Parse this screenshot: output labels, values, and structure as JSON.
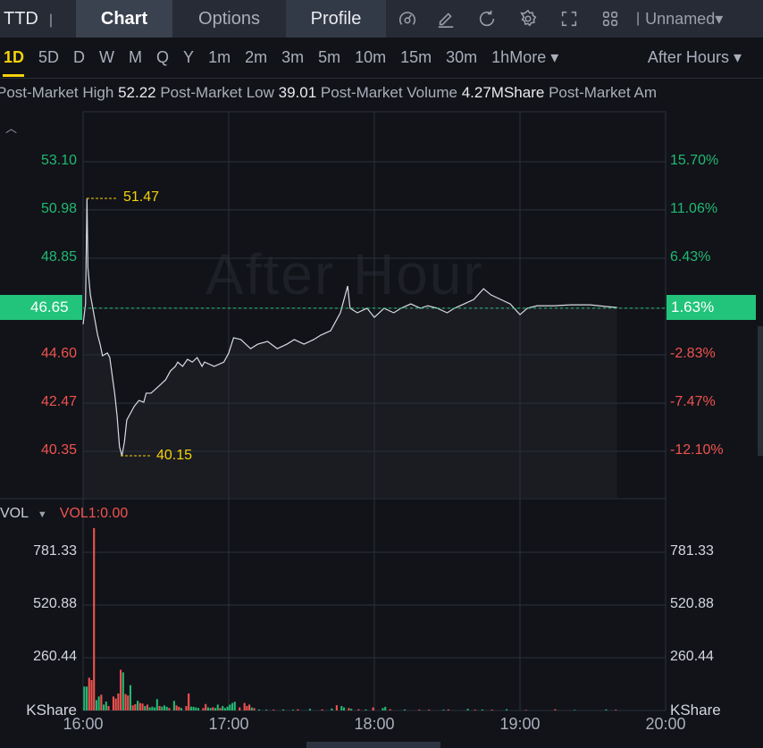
{
  "header": {
    "symbol": "TTD",
    "tabs": [
      "Chart",
      "Options",
      "Profile"
    ],
    "active_tab": "Chart",
    "icons": [
      "gauge-icon",
      "pencil-icon",
      "refresh-icon",
      "gear-icon",
      "expand-icon",
      "grid-icon"
    ],
    "layout_name": "Unnamed"
  },
  "periods": {
    "items": [
      "1D",
      "5D",
      "D",
      "W",
      "M",
      "Q",
      "Y",
      "1m",
      "2m",
      "3m",
      "5m",
      "10m",
      "15m",
      "30m",
      "1h"
    ],
    "active": "1D",
    "more_label": "More",
    "session": "After Hours"
  },
  "info": {
    "high_label": "Post-Market High",
    "high": "52.22",
    "low_label": "Post-Market Low",
    "low": "39.01",
    "volume_label": "Post-Market Volume",
    "volume": "4.27MShare",
    "amount_label": "Post-Market Am"
  },
  "watermark": "After Hour",
  "colors": {
    "up": "#22b873",
    "down": "#f0524f",
    "accent": "#f5d20a",
    "last_price_bg": "#21c47a"
  },
  "chart_data": [
    {
      "type": "line",
      "title": "",
      "y_left_ticks": [
        "53.10",
        "50.98",
        "48.85",
        "46.65",
        "44.60",
        "42.47",
        "40.35"
      ],
      "y_right_ticks": [
        "15.70%",
        "11.06%",
        "6.43%",
        "1.63%",
        "-2.83%",
        "-7.47%",
        "-12.10%"
      ],
      "ylim": [
        40.35,
        53.1
      ],
      "x_ticks": [
        "16:00",
        "17:00",
        "18:00",
        "19:00",
        "20:00"
      ],
      "last_price": "46.65",
      "last_pct": "1.63%",
      "max_label": "51.47",
      "min_label": "40.15",
      "points": [
        [
          "16:00",
          45.94
        ],
        [
          "16:01",
          46.84
        ],
        [
          "16:01",
          51.49
        ],
        [
          "16:02",
          48.42
        ],
        [
          "16:03",
          47.24
        ],
        [
          "16:04",
          46.65
        ],
        [
          "16:05",
          46.06
        ],
        [
          "16:06",
          45.47
        ],
        [
          "16:07",
          45.07
        ],
        [
          "16:08",
          44.56
        ],
        [
          "16:10",
          44.68
        ],
        [
          "16:11",
          44.48
        ],
        [
          "16:12",
          43.69
        ],
        [
          "16:13",
          42.91
        ],
        [
          "16:14",
          41.92
        ],
        [
          "16:15",
          40.55
        ],
        [
          "16:16",
          40.15
        ],
        [
          "16:17",
          40.74
        ],
        [
          "16:18",
          41.73
        ],
        [
          "16:20",
          42.12
        ],
        [
          "16:21",
          42.32
        ],
        [
          "16:23",
          42.59
        ],
        [
          "16:25",
          42.51
        ],
        [
          "16:26",
          42.91
        ],
        [
          "16:28",
          42.91
        ],
        [
          "16:30",
          43.1
        ],
        [
          "16:32",
          43.3
        ],
        [
          "16:34",
          43.5
        ],
        [
          "16:36",
          43.89
        ],
        [
          "16:38",
          44.09
        ],
        [
          "16:39",
          44.28
        ],
        [
          "16:41",
          44.09
        ],
        [
          "16:43",
          44.4
        ],
        [
          "16:45",
          44.28
        ],
        [
          "16:47",
          44.48
        ],
        [
          "16:49",
          44.09
        ],
        [
          "16:50",
          44.28
        ],
        [
          "16:54",
          44.09
        ],
        [
          "16:58",
          44.28
        ],
        [
          "17:00",
          44.68
        ],
        [
          "17:02",
          45.35
        ],
        [
          "17:05",
          45.27
        ],
        [
          "17:09",
          44.87
        ],
        [
          "17:12",
          45.07
        ],
        [
          "17:16",
          45.19
        ],
        [
          "17:20",
          44.87
        ],
        [
          "17:24",
          45.07
        ],
        [
          "17:27",
          45.27
        ],
        [
          "17:31",
          45.07
        ],
        [
          "17:35",
          45.27
        ],
        [
          "17:38",
          45.47
        ],
        [
          "17:42",
          45.66
        ],
        [
          "17:46",
          46.45
        ],
        [
          "17:47",
          46.84
        ],
        [
          "17:49",
          47.63
        ],
        [
          "17:50",
          46.65
        ],
        [
          "17:53",
          46.45
        ],
        [
          "17:57",
          46.65
        ],
        [
          "18:00",
          46.25
        ],
        [
          "18:04",
          46.65
        ],
        [
          "18:08",
          46.45
        ],
        [
          "18:11",
          46.65
        ],
        [
          "18:15",
          46.84
        ],
        [
          "18:19",
          46.65
        ],
        [
          "18:22",
          46.76
        ],
        [
          "18:26",
          46.65
        ],
        [
          "18:30",
          46.45
        ],
        [
          "18:33",
          46.65
        ],
        [
          "18:37",
          46.84
        ],
        [
          "18:41",
          47.04
        ],
        [
          "18:45",
          47.51
        ],
        [
          "18:48",
          47.24
        ],
        [
          "18:52",
          47.04
        ],
        [
          "18:56",
          46.84
        ],
        [
          "19:00",
          46.37
        ],
        [
          "19:03",
          46.65
        ],
        [
          "19:07",
          46.76
        ],
        [
          "19:14",
          46.76
        ],
        [
          "19:21",
          46.8
        ],
        [
          "19:29",
          46.8
        ],
        [
          "19:36",
          46.72
        ],
        [
          "19:40",
          46.68
        ]
      ]
    },
    {
      "type": "bar",
      "title": "",
      "indicator": "VOL",
      "indicator_value": "VOL1:0.00",
      "unit": "KShare",
      "y_ticks": [
        "781.33",
        "520.88",
        "260.44"
      ],
      "x_ticks": [
        "16:00",
        "17:00",
        "18:00",
        "19:00",
        "20:00"
      ],
      "bars_minute_value_dir": [
        [
          0,
          118,
          "up"
        ],
        [
          1,
          118,
          "up"
        ],
        [
          2,
          162,
          "down"
        ],
        [
          3,
          150,
          "down"
        ],
        [
          4,
          901,
          "down"
        ],
        [
          5,
          51,
          "up"
        ],
        [
          6,
          69,
          "up"
        ],
        [
          7,
          78,
          "down"
        ],
        [
          8,
          29,
          "up"
        ],
        [
          9,
          44,
          "up"
        ],
        [
          10,
          22,
          "down"
        ],
        [
          12,
          69,
          "down"
        ],
        [
          13,
          59,
          "down"
        ],
        [
          14,
          84,
          "down"
        ],
        [
          15,
          201,
          "down"
        ],
        [
          16,
          188,
          "up"
        ],
        [
          17,
          81,
          "down"
        ],
        [
          18,
          74,
          "down"
        ],
        [
          19,
          125,
          "up"
        ],
        [
          20,
          25,
          "down"
        ],
        [
          21,
          31,
          "down"
        ],
        [
          22,
          48,
          "up"
        ],
        [
          23,
          37,
          "down"
        ],
        [
          24,
          34,
          "down"
        ],
        [
          25,
          22,
          "up"
        ],
        [
          26,
          29,
          "down"
        ],
        [
          27,
          15,
          "up"
        ],
        [
          28,
          19,
          "up"
        ],
        [
          29,
          15,
          "up"
        ],
        [
          30,
          56,
          "up"
        ],
        [
          31,
          22,
          "down"
        ],
        [
          32,
          19,
          "up"
        ],
        [
          33,
          25,
          "up"
        ],
        [
          34,
          18,
          "up"
        ],
        [
          35,
          12,
          "down"
        ],
        [
          37,
          47,
          "up"
        ],
        [
          38,
          25,
          "down"
        ],
        [
          39,
          18,
          "down"
        ],
        [
          40,
          12,
          "up"
        ],
        [
          42,
          22,
          "down"
        ],
        [
          43,
          84,
          "down"
        ],
        [
          44,
          19,
          "up"
        ],
        [
          45,
          18,
          "up"
        ],
        [
          46,
          15,
          "up"
        ],
        [
          47,
          12,
          "up"
        ],
        [
          49,
          12,
          "down"
        ],
        [
          50,
          32,
          "down"
        ],
        [
          51,
          15,
          "up"
        ],
        [
          52,
          12,
          "up"
        ],
        [
          53,
          16,
          "down"
        ],
        [
          54,
          12,
          "up"
        ],
        [
          55,
          29,
          "up"
        ],
        [
          56,
          12,
          "down"
        ],
        [
          57,
          22,
          "up"
        ],
        [
          58,
          12,
          "up"
        ],
        [
          59,
          19,
          "up"
        ],
        [
          60,
          29,
          "up"
        ],
        [
          61,
          37,
          "up"
        ],
        [
          62,
          43,
          "up"
        ],
        [
          64,
          15,
          "down"
        ],
        [
          66,
          37,
          "down"
        ],
        [
          67,
          22,
          "down"
        ],
        [
          68,
          29,
          "down"
        ],
        [
          69,
          15,
          "up"
        ],
        [
          70,
          12,
          "down"
        ],
        [
          72,
          5,
          "up"
        ],
        [
          75,
          4,
          "up"
        ],
        [
          78,
          4,
          "down"
        ],
        [
          82,
          5,
          "up"
        ],
        [
          86,
          4,
          "up"
        ],
        [
          88,
          6,
          "down"
        ],
        [
          93,
          8,
          "up"
        ],
        [
          98,
          5,
          "down"
        ],
        [
          102,
          10,
          "up"
        ],
        [
          104,
          26,
          "down"
        ],
        [
          106,
          22,
          "up"
        ],
        [
          107,
          15,
          "up"
        ],
        [
          109,
          12,
          "down"
        ],
        [
          110,
          8,
          "up"
        ],
        [
          113,
          6,
          "down"
        ],
        [
          116,
          5,
          "up"
        ],
        [
          119,
          15,
          "down"
        ],
        [
          123,
          12,
          "up"
        ],
        [
          124,
          18,
          "up"
        ],
        [
          126,
          6,
          "down"
        ],
        [
          132,
          5,
          "up"
        ],
        [
          138,
          4,
          "down"
        ],
        [
          142,
          4,
          "down"
        ],
        [
          148,
          4,
          "up"
        ],
        [
          150,
          5,
          "down"
        ],
        [
          158,
          8,
          "up"
        ],
        [
          161,
          4,
          "down"
        ],
        [
          164,
          5,
          "up"
        ],
        [
          168,
          4,
          "down"
        ],
        [
          174,
          6,
          "up"
        ],
        [
          182,
          3,
          "down"
        ],
        [
          194,
          6,
          "down"
        ],
        [
          202,
          3,
          "up"
        ],
        [
          215,
          5,
          "up"
        ],
        [
          219,
          4,
          "down"
        ]
      ]
    }
  ]
}
